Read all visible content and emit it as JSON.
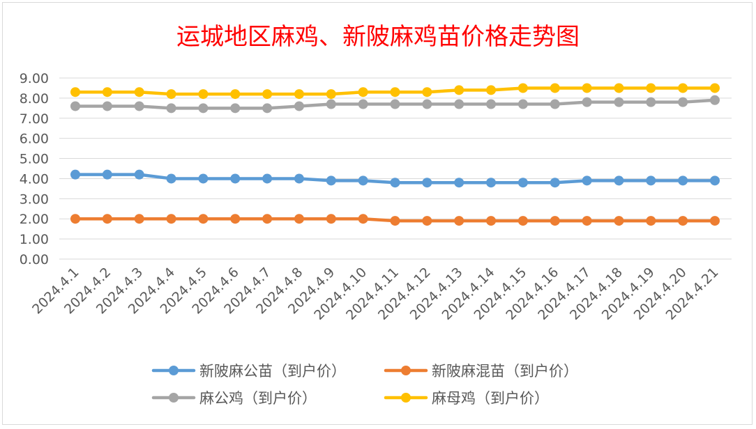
{
  "chart_data": {
    "type": "line",
    "title": "运城地区麻鸡、新陂麻鸡苗价格走势图",
    "xlabel": "",
    "ylabel": "",
    "ylim": [
      0,
      9
    ],
    "y_ticks": [
      "0.00",
      "1.00",
      "2.00",
      "3.00",
      "4.00",
      "5.00",
      "6.00",
      "7.00",
      "8.00",
      "9.00"
    ],
    "grid": true,
    "legend_position": "bottom",
    "categories": [
      "2024.4.1",
      "2024.4.2",
      "2024.4.3",
      "2024.4.4",
      "2024.4.5",
      "2024.4.6",
      "2024.4.7",
      "2024.4.8",
      "2024.4.9",
      "2024.4.10",
      "2024.4.11",
      "2024.4.12",
      "2024.4.13",
      "2024.4.14",
      "2024.4.15",
      "2024.4.16",
      "2024.4.17",
      "2024.4.18",
      "2024.4.19",
      "2024.4.20",
      "2024.4.21"
    ],
    "series": [
      {
        "name": "新陂麻公苗（到户价）",
        "color": "#5b9bd5",
        "values": [
          4.2,
          4.2,
          4.2,
          4.0,
          4.0,
          4.0,
          4.0,
          4.0,
          3.9,
          3.9,
          3.8,
          3.8,
          3.8,
          3.8,
          3.8,
          3.8,
          3.9,
          3.9,
          3.9,
          3.9,
          3.9
        ]
      },
      {
        "name": "新陂麻混苗（到户价）",
        "color": "#ed7d31",
        "values": [
          2.0,
          2.0,
          2.0,
          2.0,
          2.0,
          2.0,
          2.0,
          2.0,
          2.0,
          2.0,
          1.9,
          1.9,
          1.9,
          1.9,
          1.9,
          1.9,
          1.9,
          1.9,
          1.9,
          1.9,
          1.9
        ]
      },
      {
        "name": "麻公鸡（到户价）",
        "color": "#a5a5a5",
        "values": [
          7.6,
          7.6,
          7.6,
          7.5,
          7.5,
          7.5,
          7.5,
          7.6,
          7.7,
          7.7,
          7.7,
          7.7,
          7.7,
          7.7,
          7.7,
          7.7,
          7.8,
          7.8,
          7.8,
          7.8,
          7.9
        ]
      },
      {
        "name": "麻母鸡（到户价）",
        "color": "#ffc000",
        "values": [
          8.3,
          8.3,
          8.3,
          8.2,
          8.2,
          8.2,
          8.2,
          8.2,
          8.2,
          8.3,
          8.3,
          8.3,
          8.4,
          8.4,
          8.5,
          8.5,
          8.5,
          8.5,
          8.5,
          8.5,
          8.5
        ]
      }
    ]
  },
  "colors": {
    "title": "#ff0000",
    "axis_text": "#595959",
    "gridline": "#d9d9d9"
  }
}
